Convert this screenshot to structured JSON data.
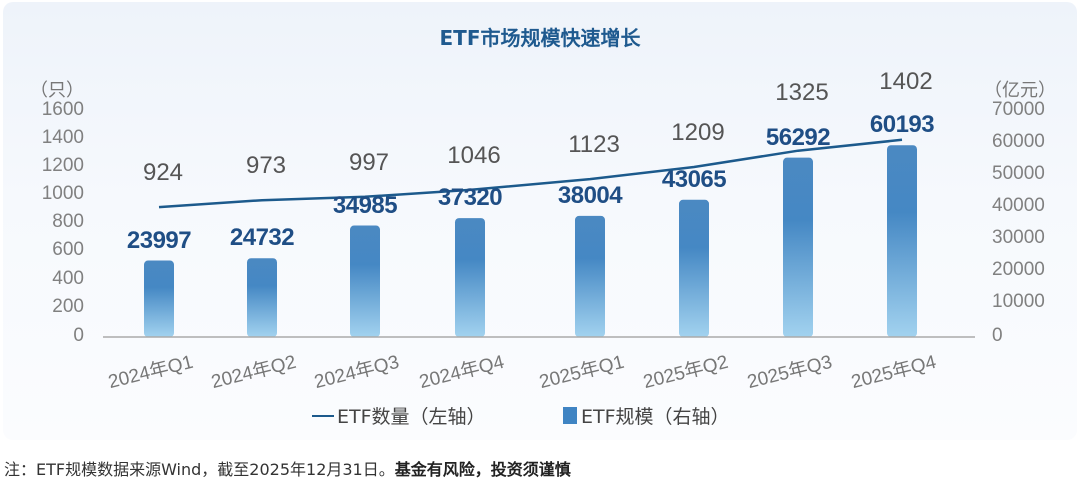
{
  "title": "ETF市场规模快速增长",
  "left_axis": {
    "unit": "（只）",
    "ticks": [
      "1600",
      "1400",
      "1200",
      "1000",
      "800",
      "600",
      "400",
      "200",
      "0"
    ]
  },
  "right_axis": {
    "unit": "（亿元）",
    "ticks": [
      "70000",
      "60000",
      "50000",
      "40000",
      "30000",
      "20000",
      "10000",
      "0"
    ]
  },
  "categories": [
    "2024年Q1",
    "2024年Q2",
    "2024年Q3",
    "2024年Q4",
    "2025年Q1",
    "2025年Q2",
    "2025年Q3",
    "2025年Q4"
  ],
  "count_labels": [
    "924",
    "973",
    "997",
    "1046",
    "1123",
    "1209",
    "1325",
    "1402"
  ],
  "scale_labels": [
    "23997",
    "24732",
    "34985",
    "37320",
    "38004",
    "43065",
    "56292",
    "60193"
  ],
  "legend": {
    "line": "ETF数量（左轴）",
    "bar": "ETF规模（右轴）"
  },
  "note": {
    "normal": "注：ETF规模数据来源Wind，截至2025年12月31日。",
    "bold": "基金有风险，投资须谨慎"
  },
  "colors": {
    "title": "#1f5a8f",
    "line": "#1c5a8c",
    "bar_top": "#3f84c3",
    "bar_bottom": "#9fd0ee",
    "scale_label": "#1f4e85"
  },
  "chart_data": {
    "type": "bar",
    "title": "ETF市场规模快速增长",
    "categories": [
      "2024年Q1",
      "2024年Q2",
      "2024年Q3",
      "2024年Q4",
      "2025年Q1",
      "2025年Q2",
      "2025年Q3",
      "2025年Q4"
    ],
    "series": [
      {
        "name": "ETF数量（左轴）",
        "type": "line",
        "axis": "left",
        "unit": "只",
        "values": [
          924,
          973,
          997,
          1046,
          1123,
          1209,
          1325,
          1402
        ]
      },
      {
        "name": "ETF规模（右轴）",
        "type": "bar",
        "axis": "right",
        "unit": "亿元",
        "values": [
          23997,
          24732,
          34985,
          37320,
          38004,
          43065,
          56292,
          60193
        ]
      }
    ],
    "ylabel_left": "只",
    "ylim_left": [
      0,
      1600
    ],
    "yticks_left": [
      0,
      200,
      400,
      600,
      800,
      1000,
      1200,
      1400,
      1600
    ],
    "ylabel_right": "亿元",
    "ylim_right": [
      0,
      70000
    ],
    "yticks_right": [
      0,
      10000,
      20000,
      30000,
      40000,
      50000,
      60000,
      70000
    ],
    "grid": false,
    "legend_position": "bottom"
  }
}
